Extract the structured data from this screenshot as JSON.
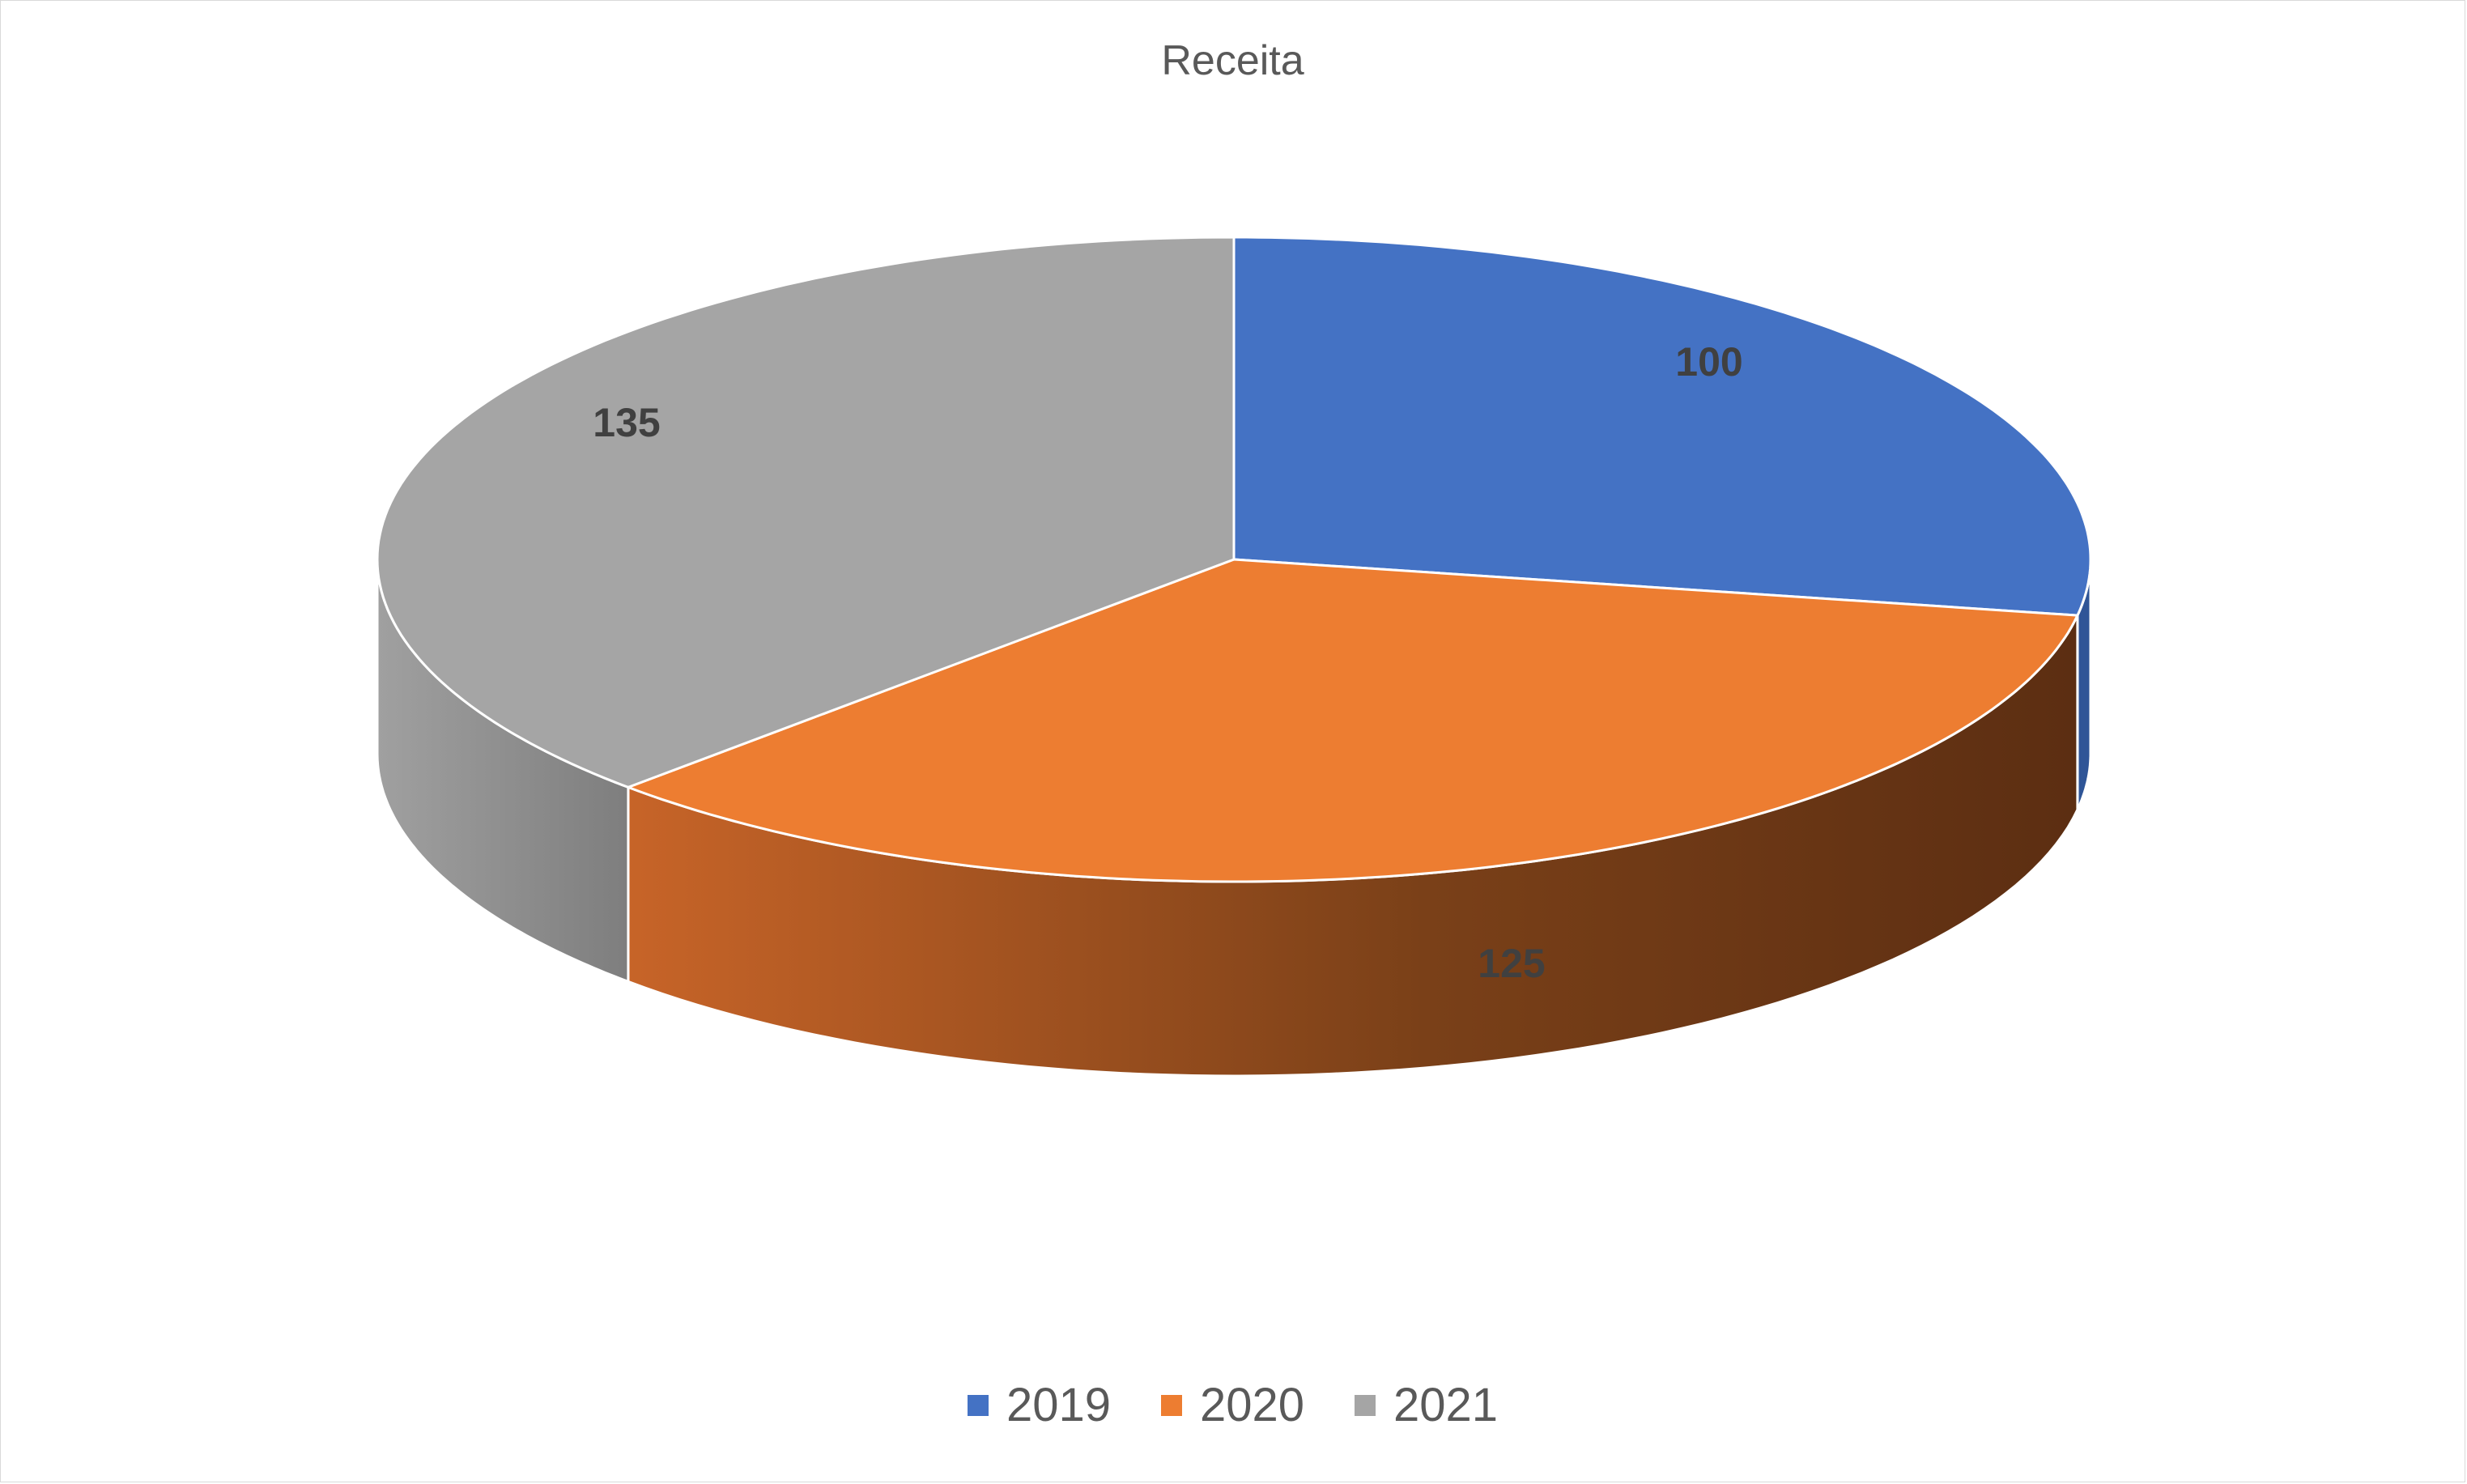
{
  "chart_data": {
    "type": "pie",
    "title": "Receita",
    "categories": [
      "2019",
      "2020",
      "2021"
    ],
    "values": [
      100,
      125,
      135
    ],
    "colors": [
      "#4472C4",
      "#ED7D31",
      "#A5A5A5"
    ],
    "data_labels": [
      "100",
      "125",
      "135"
    ],
    "legend_position": "bottom",
    "style": "3d-pie"
  }
}
